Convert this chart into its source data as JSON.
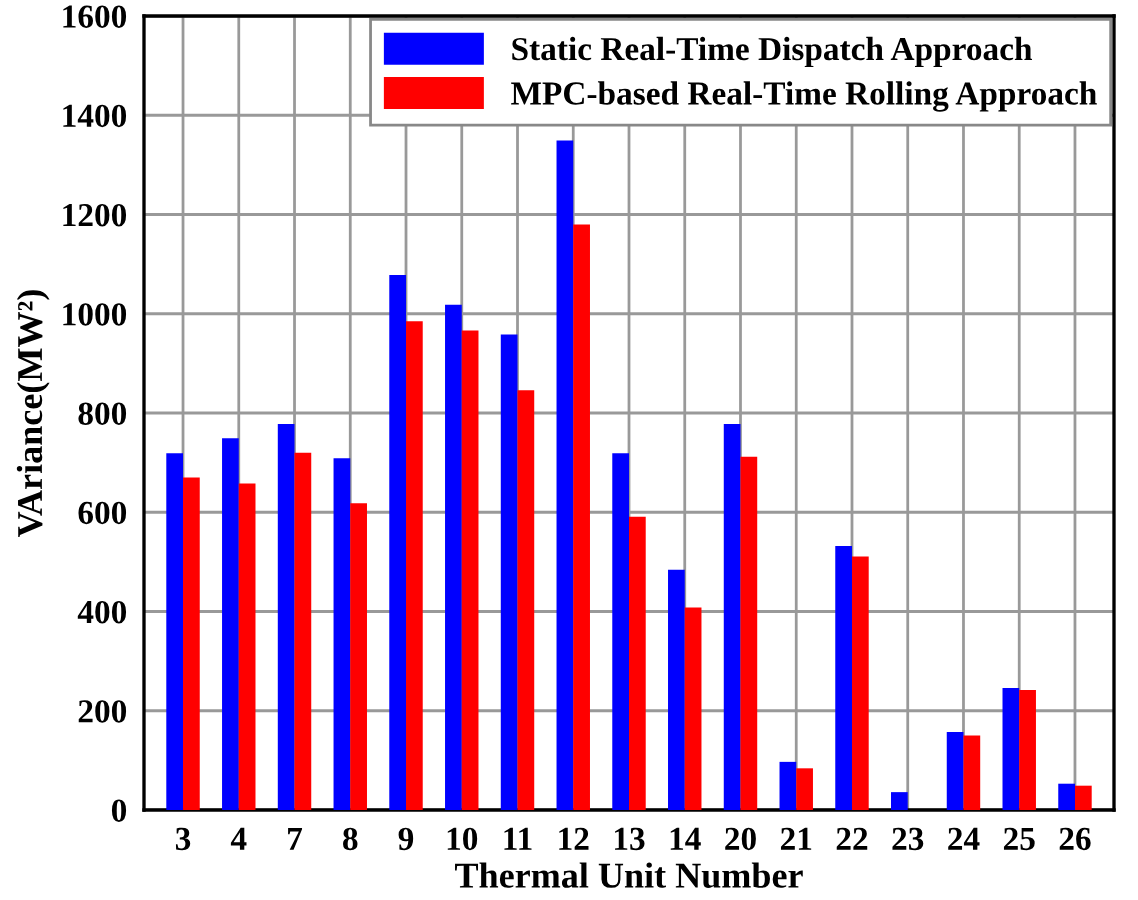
{
  "chart_data": {
    "type": "bar",
    "xlabel": "Thermal Unit Number",
    "ylabel": "VAriance(MW²)",
    "categories": [
      "3",
      "4",
      "7",
      "8",
      "9",
      "10",
      "11",
      "12",
      "13",
      "14",
      "20",
      "21",
      "22",
      "23",
      "24",
      "25",
      "26"
    ],
    "series": [
      {
        "name": "Static Real-Time Dispatch Approach",
        "color": "#0000ff",
        "values": [
          719,
          749,
          778,
          709,
          1078,
          1018,
          958,
          1349,
          719,
          484,
          778,
          97,
          532,
          36,
          157,
          246,
          53
        ]
      },
      {
        "name": "MPC-based Real-Time Rolling Approach",
        "color": "#ff0000",
        "values": [
          670,
          658,
          720,
          618,
          985,
          966,
          846,
          1180,
          591,
          408,
          712,
          84,
          511,
          null,
          150,
          242,
          49
        ]
      }
    ],
    "ylim": [
      0,
      1600
    ],
    "yticks": [
      0,
      200,
      400,
      600,
      800,
      1000,
      1200,
      1400,
      1600
    ],
    "grid": true,
    "legend": "top right"
  }
}
